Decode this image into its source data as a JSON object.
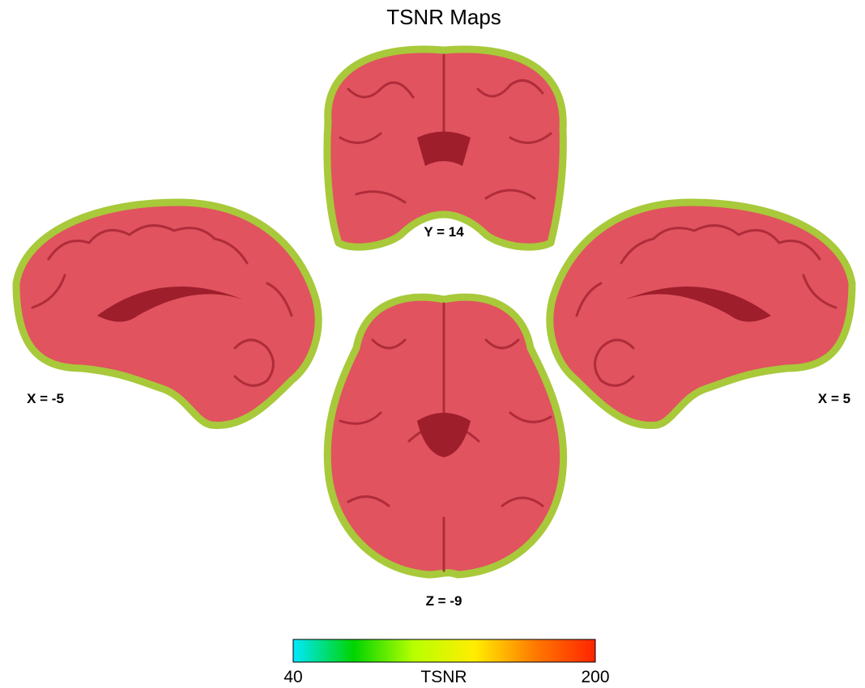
{
  "title": "TSNR Maps",
  "slices": [
    {
      "label": "Y = 14"
    },
    {
      "label": "X = -5"
    },
    {
      "label": "X = 5"
    },
    {
      "label": "Z = -9"
    }
  ],
  "colorbar": {
    "label": "TSNR",
    "ticks": [
      40,
      200
    ],
    "colors": [
      "#00e8ff",
      "#00d400",
      "#b8ff00",
      "#ffee00",
      "#ff7a00",
      "#ff2400"
    ]
  }
}
